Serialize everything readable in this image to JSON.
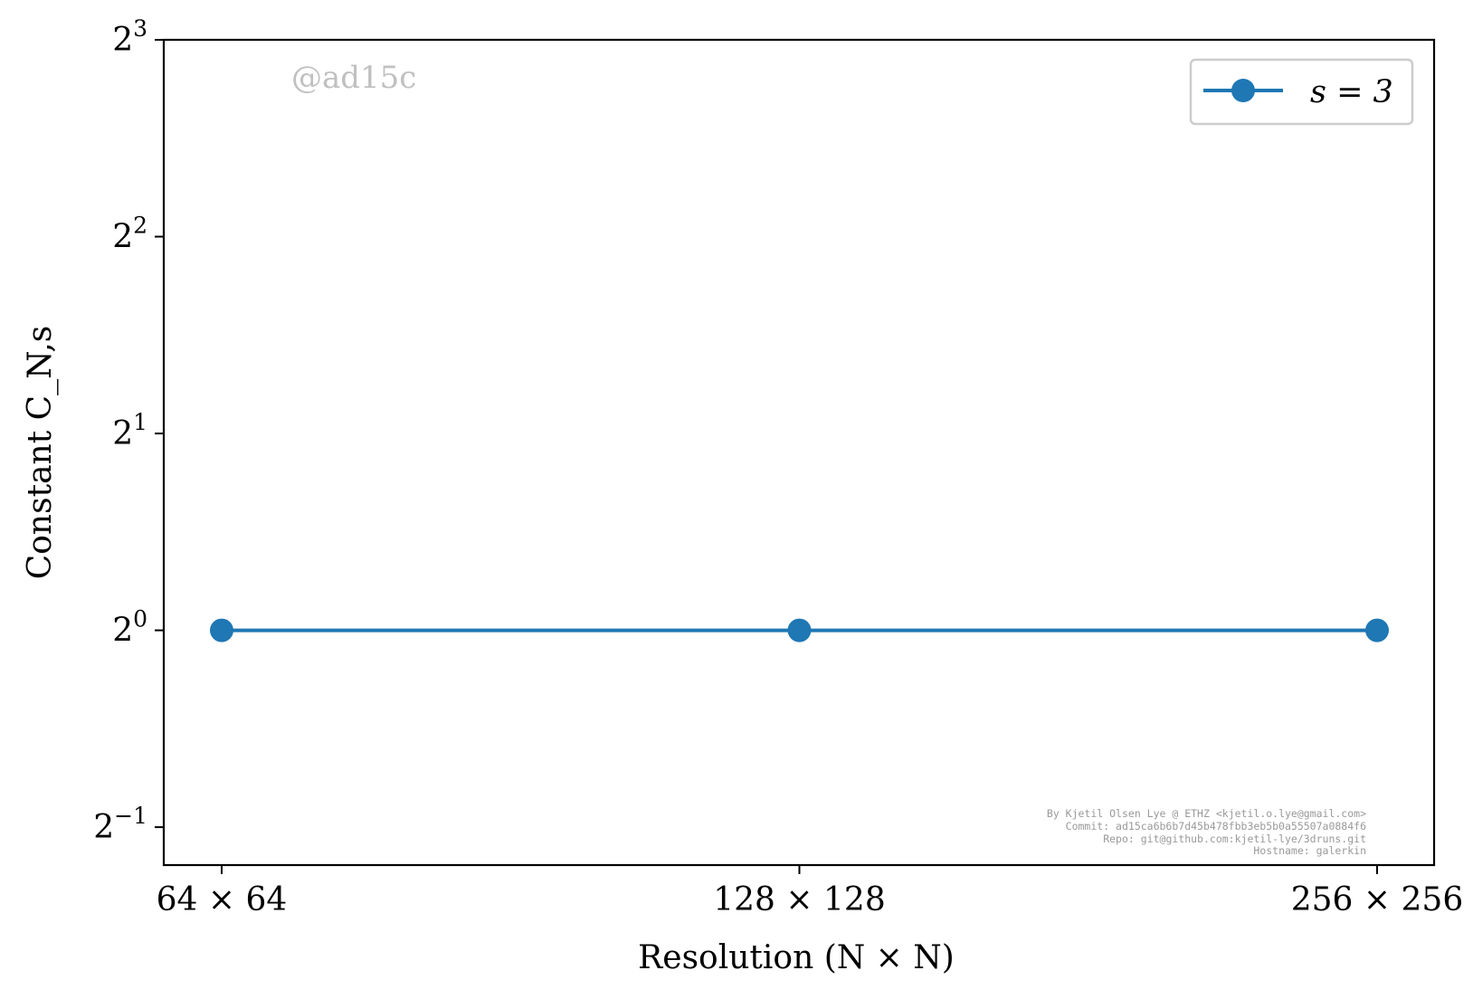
{
  "chart_data": {
    "type": "line",
    "title": "",
    "xlabel": "Resolution (N × N)",
    "ylabel": "Constant C_N,s",
    "y_scale": "log2",
    "ylim": [
      0.4375,
      8
    ],
    "y_ticks": [
      {
        "value": 0.5,
        "base": "2",
        "exp": "−1"
      },
      {
        "value": 1,
        "base": "2",
        "exp": "0"
      },
      {
        "value": 2,
        "base": "2",
        "exp": "1"
      },
      {
        "value": 4,
        "base": "2",
        "exp": "2"
      },
      {
        "value": 8,
        "base": "2",
        "exp": "3"
      }
    ],
    "categories": [
      "64 × 64",
      "128 × 128",
      "256 × 256"
    ],
    "series": [
      {
        "name": "s = 3",
        "color": "#1f77b4",
        "marker": "circle",
        "values": [
          1,
          1,
          1
        ]
      }
    ],
    "legend": {
      "placement": "top-right"
    },
    "grid": false,
    "watermark": "@ad15c",
    "credits": [
      "By Kjetil Olsen Lye @ ETHZ <kjetil.o.lye@gmail.com>",
      "Commit: ad15ca6b6b7d45b478fbb3eb5b0a55507a0884f6",
      "Repo: git@github.com:kjetil-lye/3druns.git",
      "Hostname: galerkin"
    ]
  }
}
